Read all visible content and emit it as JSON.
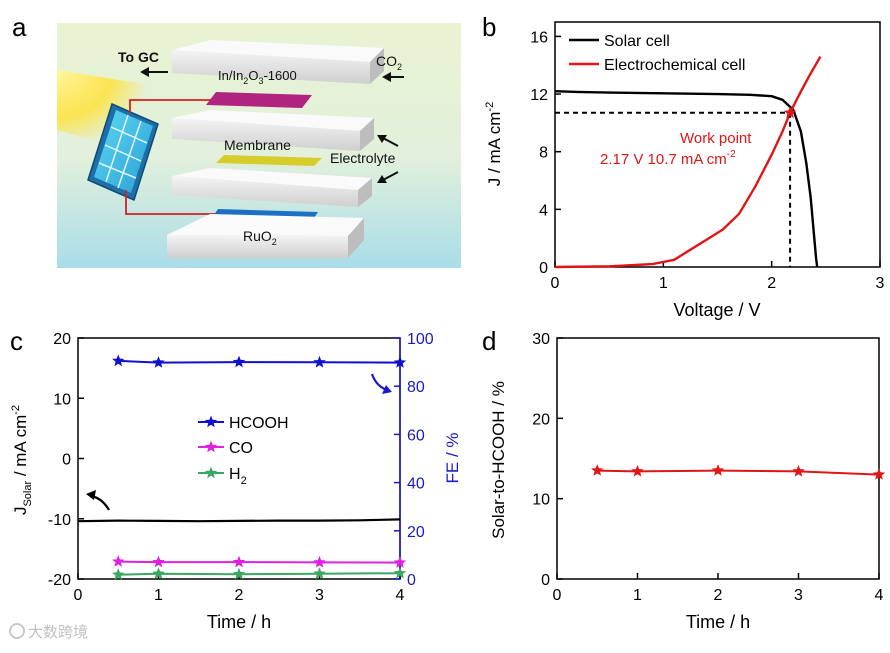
{
  "panel_letters": {
    "a": "a",
    "b": "b",
    "c": "c",
    "d": "d"
  },
  "schematic": {
    "to_gc": "To GC",
    "co2": "CO",
    "co2_sub": "2",
    "cathode": "In/In",
    "cathode_sub": "2",
    "cathode_o": "O",
    "cathode_sub2": "3",
    "cathode_suffix": "-1600",
    "membrane": "Membrane",
    "electrolyte": "Electrolyte",
    "anode": "RuO",
    "anode_sub": "2"
  },
  "colors": {
    "solar": "#000000",
    "echem": "#e01515",
    "hcooh": "#1010d0",
    "co": "#e020e0",
    "h2": "#3aa860",
    "fe_axis": "#1a1ac8",
    "stoh": "#e01515"
  },
  "chart_data": [
    {
      "id": "b",
      "type": "line",
      "xlabel": "Voltage / V",
      "ylabel_main": "J / mA cm",
      "ylabel_sup": "-2",
      "xlim": [
        0,
        3
      ],
      "ylim": [
        0,
        17
      ],
      "xticks": [
        0,
        1,
        2,
        3
      ],
      "yticks": [
        0,
        4,
        8,
        12,
        16
      ],
      "series": [
        {
          "name": "Solar cell",
          "x": [
            0,
            0.2,
            0.5,
            1.0,
            1.5,
            1.8,
            2.0,
            2.1,
            2.2,
            2.27,
            2.32,
            2.36,
            2.39,
            2.41,
            2.42
          ],
          "y": [
            12.2,
            12.15,
            12.1,
            12.05,
            12.0,
            11.95,
            11.85,
            11.6,
            10.9,
            9.4,
            7.2,
            4.8,
            2.3,
            0.6,
            0
          ]
        },
        {
          "name": "Electrochemical cell",
          "x": [
            0,
            0.5,
            0.9,
            1.1,
            1.25,
            1.4,
            1.55,
            1.7,
            1.85,
            2.0,
            2.1,
            2.17,
            2.25,
            2.35,
            2.45
          ],
          "y": [
            0,
            0.05,
            0.2,
            0.5,
            1.2,
            1.9,
            2.6,
            3.7,
            5.6,
            7.8,
            9.4,
            10.7,
            11.9,
            13.3,
            14.6
          ]
        }
      ],
      "annotation": {
        "x": 2.17,
        "y": 10.7,
        "line1": "Work point",
        "line2": "2.17 V 10.7 mA cm",
        "line2_sup": "-2"
      }
    },
    {
      "id": "c",
      "type": "line",
      "xlabel": "Time / h",
      "ylabel_left_main": "J",
      "ylabel_left_sub": "Solar",
      "ylabel_left_rest": " / mA cm",
      "ylabel_left_sup": "-2",
      "ylabel_right": "FE / %",
      "xlim": [
        0,
        4
      ],
      "ylim_left": [
        -20,
        20
      ],
      "ylim_right": [
        0,
        100
      ],
      "xticks": [
        0,
        1,
        2,
        3,
        4
      ],
      "yticks_left": [
        -20,
        -10,
        0,
        10,
        20
      ],
      "yticks_right": [
        0,
        20,
        40,
        60,
        80,
        100
      ],
      "jsolar": {
        "x": [
          0,
          0.5,
          1,
          1.5,
          2,
          2.5,
          3,
          3.5,
          4
        ],
        "y": [
          -10.4,
          -10.3,
          -10.35,
          -10.4,
          -10.35,
          -10.3,
          -10.3,
          -10.25,
          -10.1
        ]
      },
      "series": [
        {
          "name": "HCOOH",
          "label": "HCOOH",
          "x": [
            0.5,
            1,
            2,
            3,
            4
          ],
          "y": [
            90.5,
            89.8,
            90.0,
            89.9,
            89.8
          ]
        },
        {
          "name": "CO",
          "label": "CO",
          "x": [
            0.5,
            1,
            2,
            3,
            4
          ],
          "y": [
            7.2,
            7.0,
            7.0,
            6.9,
            6.8
          ]
        },
        {
          "name": "H2",
          "label": "H",
          "label_sub": "2",
          "x": [
            0.5,
            1,
            2,
            3,
            4
          ],
          "y": [
            1.8,
            2.2,
            2.0,
            2.2,
            2.4
          ]
        }
      ]
    },
    {
      "id": "d",
      "type": "line",
      "xlabel": "Time / h",
      "ylabel": "Solar-to-HCOOH / %",
      "xlim": [
        0,
        4
      ],
      "ylim": [
        0,
        30
      ],
      "xticks": [
        0,
        1,
        2,
        3,
        4
      ],
      "yticks": [
        0,
        10,
        20,
        30
      ],
      "series": [
        {
          "name": "Solar-to-HCOOH",
          "x": [
            0.5,
            1,
            2,
            3,
            4
          ],
          "y": [
            13.5,
            13.4,
            13.5,
            13.4,
            13.0
          ]
        }
      ]
    }
  ],
  "watermark": "大数跨境"
}
